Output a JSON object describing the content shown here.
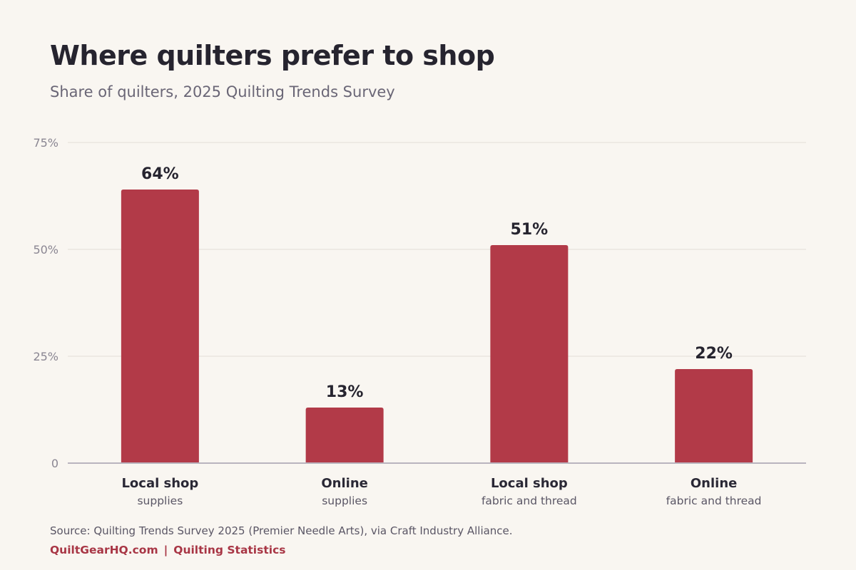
{
  "title": "Where quilters prefer to shop",
  "subtitle": "Share of quilters, 2025 Quilting Trends Survey",
  "source": "Source: Quilting Trends Survey 2025 (Premier Needle Arts), via Craft Industry Alliance.",
  "footer": {
    "site": "QuiltGearHQ.com",
    "separator": "|",
    "section": "Quilting Statistics"
  },
  "colors": {
    "bar": "#b23a48",
    "background": "#f9f6f1",
    "grid": "#ebe6e0",
    "baseline": "#b9b4be"
  },
  "chart_data": {
    "type": "bar",
    "categories": [
      "Local shop",
      "Online",
      "Local shop",
      "Online"
    ],
    "category_sublabels": [
      "supplies",
      "supplies",
      "fabric and thread",
      "fabric and thread"
    ],
    "values": [
      64,
      13,
      51,
      22
    ],
    "value_labels": [
      "64%",
      "13%",
      "51%",
      "22%"
    ],
    "ylim": [
      0,
      75
    ],
    "yticks": [
      0,
      25,
      50,
      75
    ],
    "ytick_labels": [
      "0",
      "25%",
      "50%",
      "75%"
    ],
    "grid": true,
    "legend": "none"
  }
}
